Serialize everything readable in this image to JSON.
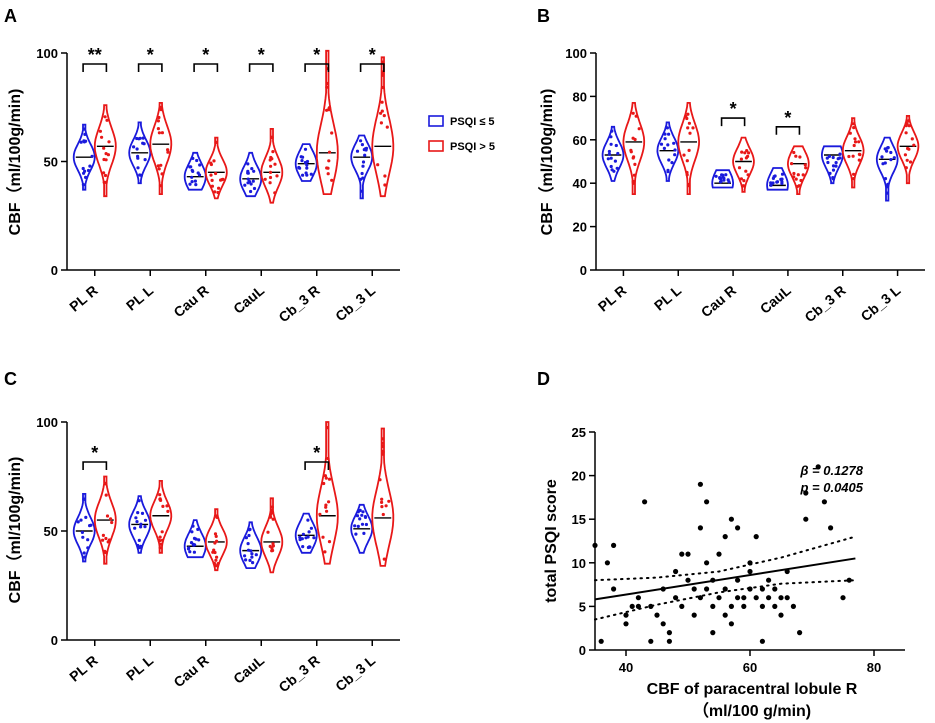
{
  "chart_data": [
    {
      "panel": "A",
      "type": "violin",
      "ylabel": "CBF（ml/100g/min)",
      "ylim": [
        0,
        100
      ],
      "yticks": [
        0,
        50,
        100
      ],
      "categories": [
        "PL R",
        "PL L",
        "Cau R",
        "CauL",
        "Cb_3 R",
        "Cb_3 L"
      ],
      "legend": [
        {
          "name": "PSQI ≤ 5",
          "color": "#1a1adc"
        },
        {
          "name": "PSQI > 5",
          "color": "#e81818"
        }
      ],
      "series": [
        {
          "name": "PSQI ≤ 5",
          "color": "#1a1adc",
          "medians": [
            52,
            54,
            43,
            42,
            49,
            52
          ],
          "ranges": [
            [
              37,
              67
            ],
            [
              40,
              68
            ],
            [
              37,
              54
            ],
            [
              34,
              54
            ],
            [
              41,
              58
            ],
            [
              33,
              62
            ]
          ]
        },
        {
          "name": "PSQI > 5",
          "color": "#e81818",
          "medians": [
            57,
            58,
            45,
            45,
            54,
            57
          ],
          "ranges": [
            [
              34,
              76
            ],
            [
              35,
              77
            ],
            [
              33,
              61
            ],
            [
              31,
              65
            ],
            [
              35,
              101
            ],
            [
              34,
              98
            ]
          ]
        }
      ],
      "significance": [
        "**",
        "*",
        "*",
        "*",
        "*",
        "*"
      ]
    },
    {
      "panel": "B",
      "type": "violin",
      "ylabel": "CBF（ml/100g/min)",
      "ylim": [
        0,
        100
      ],
      "yticks": [
        0,
        20,
        40,
        60,
        80,
        100
      ],
      "categories": [
        "PL R",
        "PL L",
        "Cau R",
        "CauL",
        "Cb_3 R",
        "Cb_3 L"
      ],
      "series": [
        {
          "name": "PSQI ≤ 5",
          "color": "#1a1adc",
          "medians": [
            53,
            55,
            40,
            39,
            53,
            51
          ],
          "ranges": [
            [
              41,
              66
            ],
            [
              41,
              68
            ],
            [
              38,
              46
            ],
            [
              37,
              47
            ],
            [
              40,
              57
            ],
            [
              32,
              61
            ]
          ]
        },
        {
          "name": "PSQI > 5",
          "color": "#e81818",
          "medians": [
            59,
            59,
            50,
            49,
            55,
            57
          ],
          "ranges": [
            [
              35,
              77
            ],
            [
              35,
              77
            ],
            [
              36,
              61
            ],
            [
              35,
              57
            ],
            [
              38,
              70
            ],
            [
              40,
              71
            ]
          ]
        }
      ],
      "significance": [
        "",
        "",
        "*",
        "*",
        "",
        ""
      ]
    },
    {
      "panel": "C",
      "type": "violin",
      "ylabel": "CBF（ml/100g/min)",
      "ylim": [
        0,
        100
      ],
      "yticks": [
        0,
        50,
        100
      ],
      "categories": [
        "PL R",
        "PL L",
        "Cau R",
        "CauL",
        "Cb_3 R",
        "Cb_3 L"
      ],
      "series": [
        {
          "name": "PSQI ≤ 5",
          "color": "#1a1adc",
          "medians": [
            50,
            53,
            43,
            41,
            48,
            51
          ],
          "ranges": [
            [
              36,
              67
            ],
            [
              40,
              66
            ],
            [
              38,
              55
            ],
            [
              33,
              54
            ],
            [
              40,
              58
            ],
            [
              40,
              62
            ]
          ]
        },
        {
          "name": "PSQI > 5",
          "color": "#e81818",
          "medians": [
            55,
            57,
            45,
            45,
            57,
            56
          ],
          "ranges": [
            [
              35,
              75
            ],
            [
              40,
              73
            ],
            [
              32,
              60
            ],
            [
              31,
              65
            ],
            [
              35,
              100
            ],
            [
              34,
              97
            ]
          ]
        }
      ],
      "significance": [
        "*",
        "",
        "",
        "",
        "*",
        ""
      ]
    },
    {
      "panel": "D",
      "type": "scatter",
      "xlabel": "CBF of paracentral lobule R",
      "xlabel2": "（ml/100 g/min)",
      "ylabel": "total PSQI score",
      "xlim": [
        35,
        85
      ],
      "ylim": [
        0,
        25
      ],
      "xticks": [
        40,
        60,
        80
      ],
      "yticks": [
        0,
        5,
        10,
        15,
        20,
        25
      ],
      "annotation_beta": "β = 0.1278",
      "annotation_p": "p = 0.0405",
      "fit": {
        "x0": 35,
        "y0": 5.8,
        "x1": 77,
        "y1": 10.5
      },
      "ci_upper": [
        [
          35,
          8.0
        ],
        [
          45,
          8.3
        ],
        [
          55,
          9.0
        ],
        [
          65,
          10.6
        ],
        [
          77,
          13.0
        ]
      ],
      "ci_lower": [
        [
          35,
          3.5
        ],
        [
          45,
          5.2
        ],
        [
          55,
          6.6
        ],
        [
          65,
          7.6
        ],
        [
          77,
          8.0
        ]
      ],
      "points": [
        [
          35,
          12
        ],
        [
          36,
          1
        ],
        [
          37,
          10
        ],
        [
          38,
          7
        ],
        [
          38,
          12
        ],
        [
          40,
          4
        ],
        [
          40,
          3
        ],
        [
          41,
          5
        ],
        [
          42,
          5
        ],
        [
          42,
          6
        ],
        [
          43,
          17
        ],
        [
          44,
          1
        ],
        [
          44,
          5
        ],
        [
          45,
          4
        ],
        [
          46,
          7
        ],
        [
          46,
          3
        ],
        [
          47,
          1
        ],
        [
          47,
          2
        ],
        [
          48,
          6
        ],
        [
          48,
          9
        ],
        [
          49,
          11
        ],
        [
          49,
          5
        ],
        [
          50,
          8
        ],
        [
          50,
          11
        ],
        [
          51,
          7
        ],
        [
          51,
          4
        ],
        [
          52,
          19
        ],
        [
          52,
          14
        ],
        [
          52,
          6
        ],
        [
          53,
          10
        ],
        [
          53,
          7
        ],
        [
          53,
          17
        ],
        [
          54,
          5
        ],
        [
          54,
          2
        ],
        [
          54,
          8
        ],
        [
          55,
          6
        ],
        [
          55,
          11
        ],
        [
          56,
          13
        ],
        [
          56,
          7
        ],
        [
          56,
          4
        ],
        [
          57,
          15
        ],
        [
          57,
          5
        ],
        [
          57,
          3
        ],
        [
          58,
          14
        ],
        [
          58,
          8
        ],
        [
          58,
          6
        ],
        [
          59,
          6
        ],
        [
          59,
          5
        ],
        [
          60,
          10
        ],
        [
          60,
          7
        ],
        [
          60,
          9
        ],
        [
          61,
          6
        ],
        [
          61,
          13
        ],
        [
          62,
          7
        ],
        [
          62,
          5
        ],
        [
          62,
          1
        ],
        [
          63,
          6
        ],
        [
          63,
          8
        ],
        [
          64,
          5
        ],
        [
          64,
          7
        ],
        [
          65,
          6
        ],
        [
          65,
          4
        ],
        [
          66,
          9
        ],
        [
          66,
          6
        ],
        [
          67,
          5
        ],
        [
          68,
          2
        ],
        [
          69,
          18
        ],
        [
          69,
          15
        ],
        [
          71,
          21
        ],
        [
          72,
          17
        ],
        [
          73,
          14
        ],
        [
          75,
          6
        ],
        [
          76,
          8
        ]
      ]
    }
  ]
}
